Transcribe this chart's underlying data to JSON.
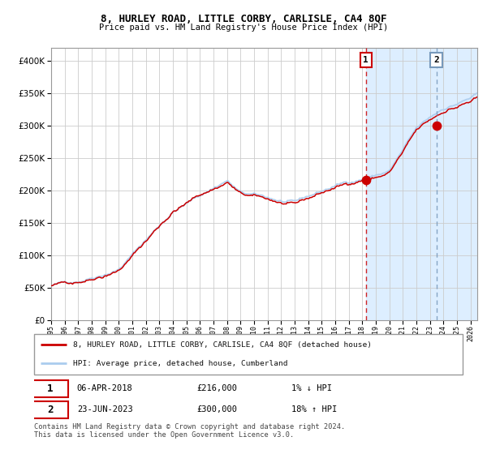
{
  "title": "8, HURLEY ROAD, LITTLE CORBY, CARLISLE, CA4 8QF",
  "subtitle": "Price paid vs. HM Land Registry's House Price Index (HPI)",
  "legend_line1": "8, HURLEY ROAD, LITTLE CORBY, CARLISLE, CA4 8QF (detached house)",
  "legend_line2": "HPI: Average price, detached house, Cumberland",
  "annotation1_date": "06-APR-2018",
  "annotation1_price": "£216,000",
  "annotation1_hpi": "1% ↓ HPI",
  "annotation2_date": "23-JUN-2023",
  "annotation2_price": "£300,000",
  "annotation2_hpi": "18% ↑ HPI",
  "footer": "Contains HM Land Registry data © Crown copyright and database right 2024.\nThis data is licensed under the Open Government Licence v3.0.",
  "hpi_color": "#aaccee",
  "sale_color": "#cc0000",
  "point_color": "#cc0000",
  "vline1_color": "#cc0000",
  "vline2_color": "#7799bb",
  "shade_color": "#ddeeff",
  "hatch_color": "#bbccdd",
  "grid_color": "#cccccc",
  "bg_color": "#ffffff",
  "ylim": [
    0,
    420000
  ],
  "yticks": [
    0,
    50000,
    100000,
    150000,
    200000,
    250000,
    300000,
    350000,
    400000
  ],
  "xlim_start": 1995,
  "xlim_end": 2026.5,
  "sale1_x": 2018.27,
  "sale1_y": 216000,
  "sale2_x": 2023.48,
  "sale2_y": 300000
}
